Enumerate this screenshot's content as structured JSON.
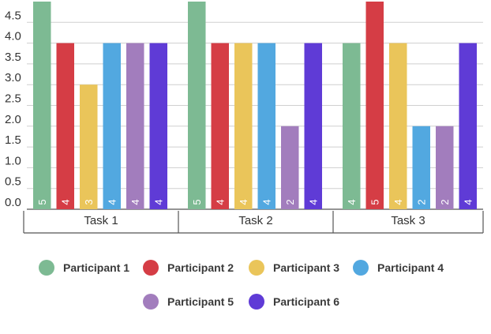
{
  "chart_data": {
    "type": "bar",
    "categories": [
      "Task 1",
      "Task 2",
      "Task 3"
    ],
    "series": [
      {
        "name": "Participant 1",
        "color": "#7dba93",
        "values": [
          5,
          5,
          4
        ]
      },
      {
        "name": "Participant 2",
        "color": "#d53d45",
        "values": [
          4,
          4,
          5
        ]
      },
      {
        "name": "Participant 3",
        "color": "#eac55a",
        "values": [
          3,
          4,
          4
        ]
      },
      {
        "name": "Participant 4",
        "color": "#52a8e0",
        "values": [
          4,
          4,
          2
        ]
      },
      {
        "name": "Participant 5",
        "color": "#a27dbd",
        "values": [
          4,
          2,
          2
        ]
      },
      {
        "name": "Participant 6",
        "color": "#5f3bd6",
        "values": [
          4,
          4,
          4
        ]
      }
    ],
    "y_ticks": [
      "0.0",
      "0.5",
      "1.0",
      "1.5",
      "2.0",
      "2.5",
      "3.0",
      "3.5",
      "4.0",
      "4.5"
    ],
    "ylim": [
      0,
      5
    ],
    "grid": true,
    "data_labels": true,
    "legend_position": "bottom",
    "title": "",
    "xlabel": "",
    "ylabel": ""
  }
}
